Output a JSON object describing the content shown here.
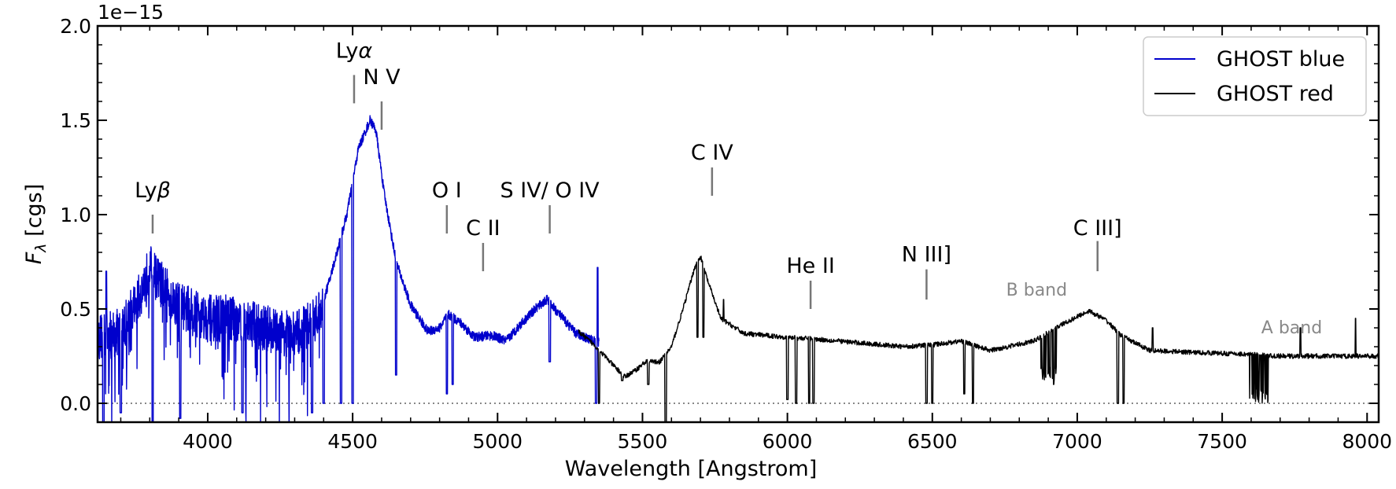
{
  "chart_data": {
    "type": "line",
    "xlabel": "Wavelength [Angstrom]",
    "ylabel_main": "F",
    "ylabel_sub": "λ",
    "ylabel_unit": " [cgs]",
    "y_scale_label": "1e−15",
    "xlim": [
      3620,
      8040
    ],
    "ylim": [
      -0.1,
      2.0
    ],
    "x_ticks": [
      4000,
      4500,
      5000,
      5500,
      6000,
      6500,
      7000,
      7500,
      8000
    ],
    "x_tick_labels": [
      "4000",
      "4500",
      "5000",
      "5500",
      "6000",
      "6500",
      "7000",
      "7500",
      "8000"
    ],
    "y_ticks": [
      0.0,
      0.5,
      1.0,
      1.5,
      2.0
    ],
    "y_tick_labels": [
      "0.0",
      "0.5",
      "1.0",
      "1.5",
      "2.0"
    ],
    "zero_line": 0.0,
    "legend": {
      "placement": "top-right",
      "entries": [
        {
          "label": "GHOST blue",
          "color": "#0000cc"
        },
        {
          "label": "GHOST red",
          "color": "#000000"
        }
      ]
    },
    "series": [
      {
        "name": "GHOST blue",
        "color": "#0000cc",
        "x_range": [
          3620,
          5350
        ],
        "continuum": [
          [
            3620,
            0.35
          ],
          [
            3700,
            0.38
          ],
          [
            3760,
            0.55
          ],
          [
            3800,
            0.72
          ],
          [
            3830,
            0.65
          ],
          [
            3880,
            0.55
          ],
          [
            3950,
            0.48
          ],
          [
            4000,
            0.45
          ],
          [
            4100,
            0.45
          ],
          [
            4200,
            0.4
          ],
          [
            4300,
            0.36
          ],
          [
            4380,
            0.45
          ],
          [
            4420,
            0.65
          ],
          [
            4480,
            1.0
          ],
          [
            4520,
            1.35
          ],
          [
            4560,
            1.5
          ],
          [
            4580,
            1.45
          ],
          [
            4610,
            1.1
          ],
          [
            4650,
            0.75
          ],
          [
            4700,
            0.52
          ],
          [
            4760,
            0.38
          ],
          [
            4800,
            0.4
          ],
          [
            4830,
            0.47
          ],
          [
            4870,
            0.43
          ],
          [
            4920,
            0.35
          ],
          [
            4980,
            0.36
          ],
          [
            5030,
            0.33
          ],
          [
            5080,
            0.42
          ],
          [
            5130,
            0.5
          ],
          [
            5170,
            0.55
          ],
          [
            5220,
            0.46
          ],
          [
            5270,
            0.37
          ],
          [
            5350,
            0.32
          ]
        ],
        "absorption_lines": [
          [
            3640,
            -0.1
          ],
          [
            3700,
            -0.05
          ],
          [
            3810,
            -0.1
          ],
          [
            3905,
            -0.08
          ],
          [
            4120,
            -0.05
          ],
          [
            4360,
            -0.05
          ],
          [
            4400,
            0.0
          ],
          [
            4460,
            0.0
          ],
          [
            4500,
            0.0
          ],
          [
            4650,
            0.15
          ],
          [
            4825,
            0.05
          ],
          [
            4845,
            0.1
          ],
          [
            5180,
            0.22
          ],
          [
            5340,
            0.0
          ]
        ],
        "emission_spikes": [
          [
            3650,
            0.7
          ],
          [
            5345,
            0.72
          ]
        ]
      },
      {
        "name": "GHOST red",
        "color": "#000000",
        "x_range": [
          5280,
          8040
        ],
        "continuum": [
          [
            5280,
            0.38
          ],
          [
            5340,
            0.3
          ],
          [
            5400,
            0.2
          ],
          [
            5440,
            0.14
          ],
          [
            5480,
            0.18
          ],
          [
            5510,
            0.22
          ],
          [
            5560,
            0.22
          ],
          [
            5600,
            0.3
          ],
          [
            5640,
            0.5
          ],
          [
            5680,
            0.72
          ],
          [
            5700,
            0.78
          ],
          [
            5725,
            0.65
          ],
          [
            5770,
            0.45
          ],
          [
            5850,
            0.37
          ],
          [
            6000,
            0.35
          ],
          [
            6100,
            0.34
          ],
          [
            6250,
            0.32
          ],
          [
            6400,
            0.3
          ],
          [
            6500,
            0.31
          ],
          [
            6600,
            0.33
          ],
          [
            6700,
            0.28
          ],
          [
            6850,
            0.33
          ],
          [
            6950,
            0.42
          ],
          [
            7040,
            0.49
          ],
          [
            7100,
            0.44
          ],
          [
            7150,
            0.36
          ],
          [
            7250,
            0.28
          ],
          [
            7400,
            0.27
          ],
          [
            7590,
            0.26
          ],
          [
            7680,
            0.25
          ],
          [
            7850,
            0.25
          ],
          [
            8040,
            0.25
          ]
        ],
        "absorption_lines": [
          [
            5350,
            0.0
          ],
          [
            5430,
            0.12
          ],
          [
            5520,
            0.1
          ],
          [
            5580,
            -0.1
          ],
          [
            5690,
            0.35
          ],
          [
            5710,
            0.35
          ],
          [
            6000,
            0.02
          ],
          [
            6030,
            0.0
          ],
          [
            6075,
            0.0
          ],
          [
            6090,
            0.0
          ],
          [
            6480,
            0.0
          ],
          [
            6500,
            0.0
          ],
          [
            6610,
            0.05
          ],
          [
            6640,
            0.0
          ],
          [
            6880,
            0.15
          ],
          [
            6920,
            0.1
          ],
          [
            7140,
            0.0
          ],
          [
            7160,
            0.0
          ]
        ],
        "absorption_bands": [
          [
            6870,
            6930,
            0.12
          ],
          [
            7590,
            7660,
            0.0
          ]
        ],
        "emission_spikes": [
          [
            5780,
            0.55
          ],
          [
            7260,
            0.4
          ],
          [
            7770,
            0.4
          ],
          [
            7960,
            0.45
          ]
        ]
      }
    ],
    "line_annotations": [
      {
        "label": "Ly",
        "greek": "β",
        "x": 3810,
        "tick_top": 1.0,
        "tick_bottom": 0.9,
        "label_y": 1.05
      },
      {
        "label": "Ly",
        "greek": "α",
        "x": 4505,
        "tick_top": 1.74,
        "tick_bottom": 1.59,
        "label_y": 1.79
      },
      {
        "label": "N V",
        "greek": "",
        "x": 4600,
        "tick_top": 1.6,
        "tick_bottom": 1.45,
        "label_y": 1.65
      },
      {
        "label": "O I",
        "greek": "",
        "x": 4825,
        "tick_top": 1.05,
        "tick_bottom": 0.9,
        "label_y": 1.05
      },
      {
        "label": "C II",
        "greek": "",
        "x": 4950,
        "tick_top": 0.85,
        "tick_bottom": 0.7,
        "label_y": 0.85
      },
      {
        "label": "S IV/ O IV",
        "greek": "",
        "x": 5180,
        "tick_top": 1.05,
        "tick_bottom": 0.9,
        "label_y": 1.05
      },
      {
        "label": "C IV",
        "greek": "",
        "x": 5740,
        "tick_top": 1.25,
        "tick_bottom": 1.1,
        "label_y": 1.25
      },
      {
        "label": "He II",
        "greek": "",
        "x": 6080,
        "tick_top": 0.65,
        "tick_bottom": 0.5,
        "label_y": 0.65
      },
      {
        "label": "N III]",
        "greek": "",
        "x": 6480,
        "tick_top": 0.71,
        "tick_bottom": 0.55,
        "label_y": 0.71
      },
      {
        "label": "C III]",
        "greek": "",
        "x": 7070,
        "tick_top": 0.86,
        "tick_bottom": 0.7,
        "label_y": 0.85
      }
    ],
    "band_annotations": [
      {
        "label": "B band",
        "x": 6860,
        "y": 0.57
      },
      {
        "label": "A band",
        "x": 7740,
        "y": 0.37
      }
    ]
  }
}
